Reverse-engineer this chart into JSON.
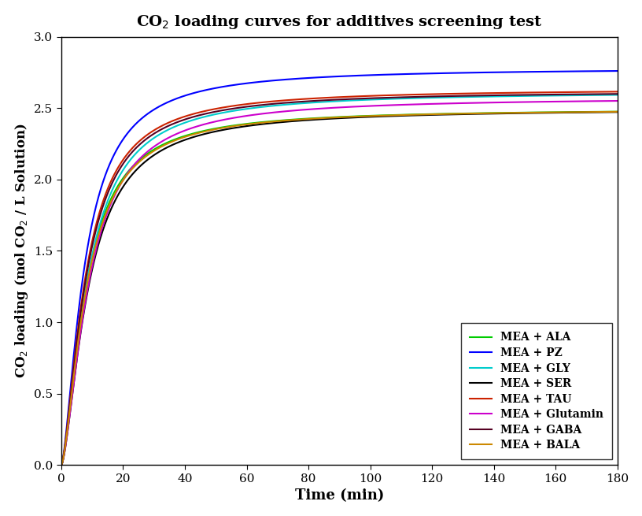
{
  "title": "CO$_2$ loading curves for additives screening test",
  "xlabel": "Time (min)",
  "ylabel": "CO$_2$ loading (mol CO$_2$ / L Solution)",
  "xlim": [
    0,
    180
  ],
  "ylim": [
    0.0,
    3.0
  ],
  "xticks": [
    0,
    20,
    40,
    60,
    80,
    100,
    120,
    140,
    160,
    180
  ],
  "yticks": [
    0.0,
    0.5,
    1.0,
    1.5,
    2.0,
    2.5,
    3.0
  ],
  "series": [
    {
      "label": "MEA + ALA",
      "color": "#00cc00",
      "final": 2.495,
      "k": 8.0,
      "n": 1.55
    },
    {
      "label": "MEA + PZ",
      "color": "#0000ff",
      "final": 2.78,
      "k": 7.5,
      "n": 1.55
    },
    {
      "label": "MEA + GLY",
      "color": "#00cccc",
      "final": 2.615,
      "k": 8.5,
      "n": 1.55
    },
    {
      "label": "MEA + SER",
      "color": "#000000",
      "final": 2.495,
      "k": 8.8,
      "n": 1.55
    },
    {
      "label": "MEA + TAU",
      "color": "#cc2200",
      "final": 2.635,
      "k": 7.8,
      "n": 1.55
    },
    {
      "label": "MEA + Glutamin",
      "color": "#cc00cc",
      "final": 2.575,
      "k": 9.0,
      "n": 1.55
    },
    {
      "label": "MEA + GABA",
      "color": "#550022",
      "final": 2.62,
      "k": 8.0,
      "n": 1.55
    },
    {
      "label": "MEA + BALA",
      "color": "#cc8800",
      "final": 2.495,
      "k": 8.2,
      "n": 1.55
    }
  ],
  "legend_loc": "lower right",
  "background_color": "#ffffff",
  "linewidth": 1.5
}
